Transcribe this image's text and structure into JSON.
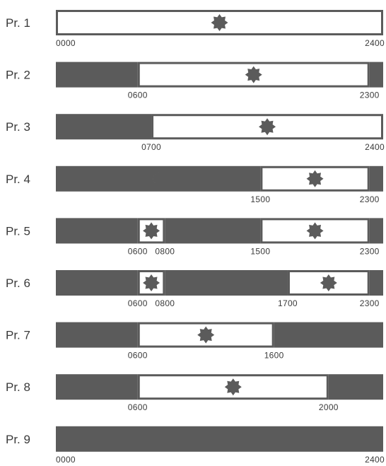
{
  "diagram": {
    "colors": {
      "night": "#5b5b5b",
      "day": "#ffffff",
      "icon": "#5b5b5b",
      "moon": "#ffffff",
      "outline": "#5b5b5b"
    },
    "icon_names": {
      "day": "sun-icon",
      "night": "moon-icon"
    },
    "programs": [
      {
        "label": "Pr. 1",
        "segments": [
          {
            "type": "day",
            "start": 0,
            "end": 2400
          }
        ],
        "ticks": [
          {
            "text": "0000",
            "value": 0
          },
          {
            "text": "2400",
            "value": 2400
          }
        ]
      },
      {
        "label": "Pr. 2",
        "segments": [
          {
            "type": "night",
            "start": 0,
            "end": 600
          },
          {
            "type": "day",
            "start": 600,
            "end": 2300
          },
          {
            "type": "night",
            "start": 2300,
            "end": 2400
          }
        ],
        "ticks": [
          {
            "text": "0600",
            "value": 600
          },
          {
            "text": "2300",
            "value": 2300
          }
        ]
      },
      {
        "label": "Pr. 3",
        "segments": [
          {
            "type": "night",
            "start": 0,
            "end": 700
          },
          {
            "type": "day",
            "start": 700,
            "end": 2400
          }
        ],
        "ticks": [
          {
            "text": "0700",
            "value": 700
          },
          {
            "text": "2400",
            "value": 2400
          }
        ]
      },
      {
        "label": "Pr. 4",
        "segments": [
          {
            "type": "night",
            "start": 0,
            "end": 1500
          },
          {
            "type": "day",
            "start": 1500,
            "end": 2300
          },
          {
            "type": "night",
            "start": 2300,
            "end": 2400
          }
        ],
        "ticks": [
          {
            "text": "1500",
            "value": 1500
          },
          {
            "text": "2300",
            "value": 2300
          }
        ]
      },
      {
        "label": "Pr. 5",
        "segments": [
          {
            "type": "night",
            "start": 0,
            "end": 600
          },
          {
            "type": "day",
            "start": 600,
            "end": 800
          },
          {
            "type": "night",
            "start": 800,
            "end": 1500
          },
          {
            "type": "day",
            "start": 1500,
            "end": 2300
          },
          {
            "type": "night",
            "start": 2300,
            "end": 2400
          }
        ],
        "ticks": [
          {
            "text": "0600",
            "value": 600
          },
          {
            "text": "0800",
            "value": 800
          },
          {
            "text": "1500",
            "value": 1500
          },
          {
            "text": "2300",
            "value": 2300
          }
        ]
      },
      {
        "label": "Pr. 6",
        "segments": [
          {
            "type": "night",
            "start": 0,
            "end": 600
          },
          {
            "type": "day",
            "start": 600,
            "end": 800
          },
          {
            "type": "night",
            "start": 800,
            "end": 1700
          },
          {
            "type": "day",
            "start": 1700,
            "end": 2300
          },
          {
            "type": "night",
            "start": 2300,
            "end": 2400
          }
        ],
        "ticks": [
          {
            "text": "0600",
            "value": 600
          },
          {
            "text": "0800",
            "value": 800
          },
          {
            "text": "1700",
            "value": 1700
          },
          {
            "text": "2300",
            "value": 2300
          }
        ]
      },
      {
        "label": "Pr. 7",
        "segments": [
          {
            "type": "night",
            "start": 0,
            "end": 600
          },
          {
            "type": "day",
            "start": 600,
            "end": 1600
          },
          {
            "type": "night",
            "start": 1600,
            "end": 2400
          }
        ],
        "ticks": [
          {
            "text": "0600",
            "value": 600
          },
          {
            "text": "1600",
            "value": 1600
          }
        ]
      },
      {
        "label": "Pr. 8",
        "segments": [
          {
            "type": "night",
            "start": 0,
            "end": 600
          },
          {
            "type": "day",
            "start": 600,
            "end": 2000
          },
          {
            "type": "night",
            "start": 2000,
            "end": 2400
          }
        ],
        "ticks": [
          {
            "text": "0600",
            "value": 600
          },
          {
            "text": "2000",
            "value": 2000
          }
        ]
      },
      {
        "label": "Pr. 9",
        "segments": [
          {
            "type": "night",
            "start": 0,
            "end": 2400
          }
        ],
        "ticks": [
          {
            "text": "0000",
            "value": 0
          },
          {
            "text": "2400",
            "value": 2400
          }
        ]
      }
    ]
  }
}
